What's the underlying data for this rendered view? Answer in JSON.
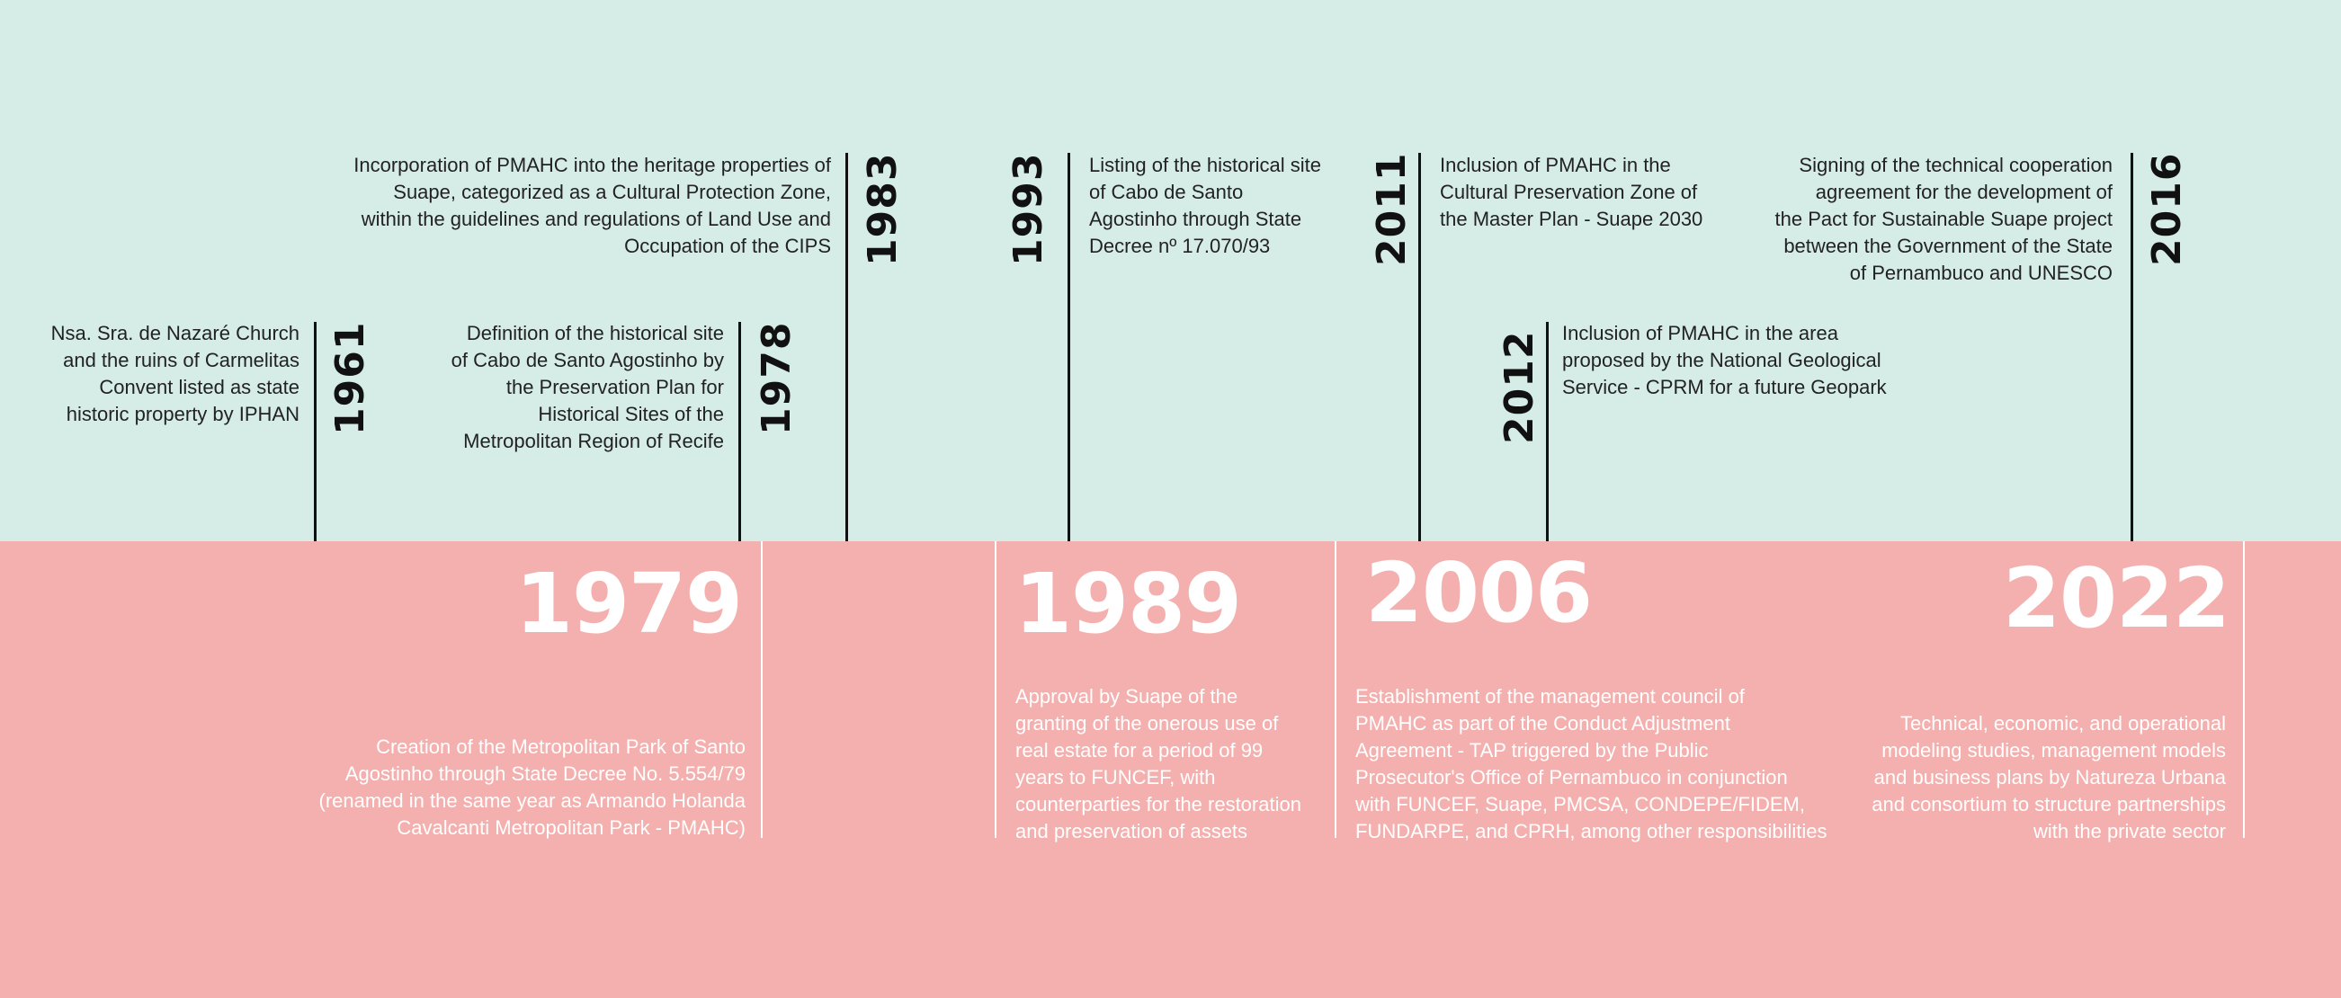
{
  "colors": {
    "top_band": "#d6ede7",
    "bottom_band": "#f4b0ae",
    "line_dark": "#111111",
    "line_light": "#ffffff"
  },
  "top_events": [
    {
      "year": "1961",
      "lines": [
        "Nsa. Sra. de Nazaré Church",
        "and the ruins of Carmelitas",
        "Convent listed as state",
        "historic property by IPHAN"
      ]
    },
    {
      "year": "1978",
      "lines": [
        "Definition of the historical site",
        "of Cabo de Santo Agostinho by",
        "the Preservation Plan for",
        "Historical Sites of the",
        "Metropolitan Region of Recife"
      ]
    },
    {
      "year": "1983",
      "lines": [
        "Incorporation of PMAHC into the heritage properties of",
        "Suape, categorized as a Cultural Protection Zone,",
        "within the guidelines and regulations of Land Use and",
        "Occupation of the CIPS"
      ]
    },
    {
      "year": "1993",
      "lines": [
        "Listing of the historical site",
        "of Cabo de Santo",
        "Agostinho through State",
        "Decree nº 17.070/93"
      ]
    },
    {
      "year": "2011",
      "lines": [
        "Inclusion of PMAHC in the",
        "Cultural Preservation Zone of",
        "the Master Plan - Suape 2030"
      ]
    },
    {
      "year": "2012",
      "lines": [
        "Inclusion of PMAHC in the area",
        "proposed by the National Geological",
        "Service - CPRM for a future Geopark"
      ]
    },
    {
      "year": "2016",
      "lines": [
        "Signing of the technical cooperation",
        "agreement for the development of",
        "the Pact for Sustainable Suape project",
        "between the Government of the State",
        "of Pernambuco and UNESCO"
      ]
    }
  ],
  "bottom_events": [
    {
      "year": "1979",
      "lines": [
        "Creation of the Metropolitan Park of Santo",
        "Agostinho through State Decree No. 5.554/79",
        "(renamed in the same year as Armando Holanda",
        "Cavalcanti Metropolitan Park - PMAHC)"
      ]
    },
    {
      "year": "1989",
      "lines": [
        "Approval by Suape of the",
        "granting of the onerous use of",
        "real estate for a period of 99",
        "years to FUNCEF, with",
        "counterparties for the restoration",
        "and preservation of assets"
      ]
    },
    {
      "year": "2006",
      "lines": [
        "Establishment of the management council of",
        "PMAHC as part of the Conduct Adjustment",
        "Agreement - TAP triggered by the Public",
        "Prosecutor's Office of Pernambuco in conjunction",
        "with FUNCEF, Suape, PMCSA, CONDEPE/FIDEM,",
        "FUNDARPE, and CPRH, among other responsibilities"
      ]
    },
    {
      "year": "2022",
      "lines": [
        "Technical, economic, and operational",
        "modeling studies, management models",
        "and business plans by Natureza Urbana",
        "and consortium to structure partnerships",
        "with the private sector"
      ]
    }
  ]
}
